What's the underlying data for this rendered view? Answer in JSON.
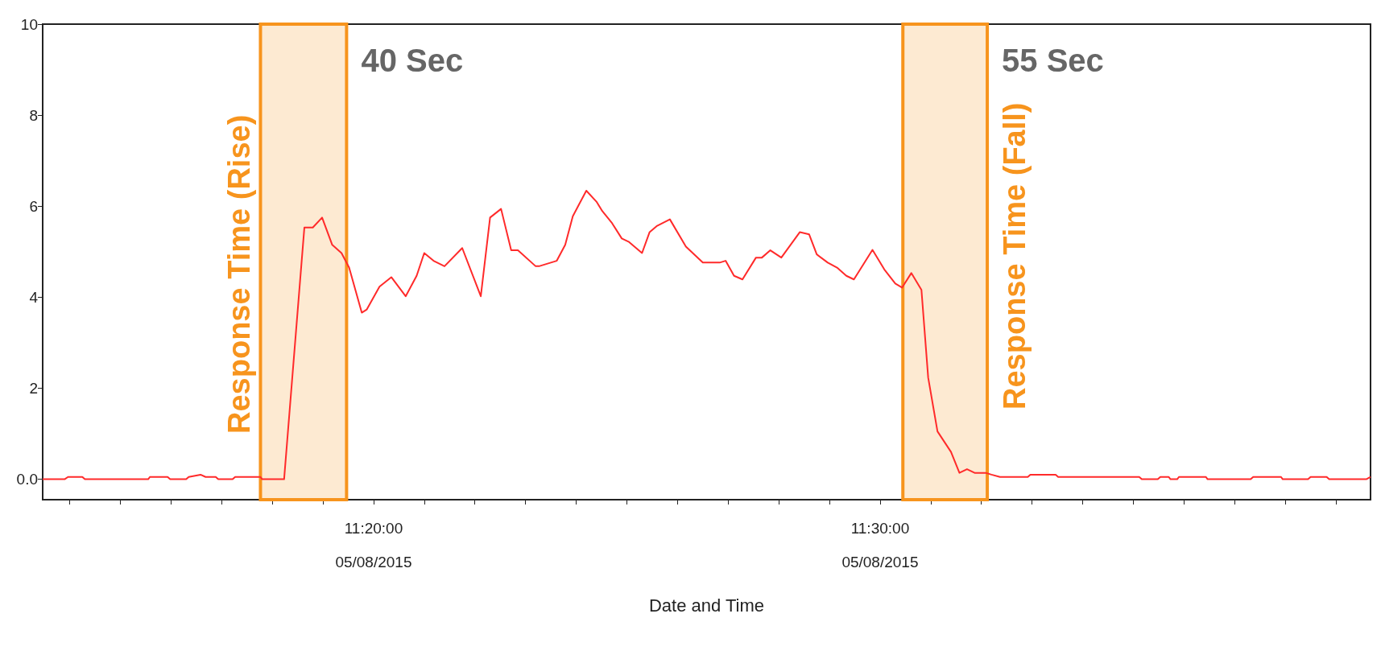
{
  "chart_data": {
    "type": "line",
    "xlabel": "Date and Time",
    "x": [
      "2015-05-08T11:13:28",
      "2015-05-08T11:13:54",
      "2015-05-08T11:13:58",
      "2015-05-08T11:14:15",
      "2015-05-08T11:14:18",
      "2015-05-08T11:15:33",
      "2015-05-08T11:15:35",
      "2015-05-08T11:15:56",
      "2015-05-08T11:15:59",
      "2015-05-08T11:16:18",
      "2015-05-08T11:16:21",
      "2015-05-08T11:16:35",
      "2015-05-08T11:16:41",
      "2015-05-08T11:16:53",
      "2015-05-08T11:16:56",
      "2015-05-08T11:17:13",
      "2015-05-08T11:17:16",
      "2015-05-08T11:17:46",
      "2015-05-08T11:17:48",
      "2015-05-08T11:18:14",
      "2015-05-08T11:18:38",
      "2015-05-08T11:18:48",
      "2015-05-08T11:18:59",
      "2015-05-08T11:19:11",
      "2015-05-08T11:19:22",
      "2015-05-08T11:19:31",
      "2015-05-08T11:19:46",
      "2015-05-08T11:19:52",
      "2015-05-08T11:20:07",
      "2015-05-08T11:20:21",
      "2015-05-08T11:20:38",
      "2015-05-08T11:20:51",
      "2015-05-08T11:21:00",
      "2015-05-08T11:21:11",
      "2015-05-08T11:21:24",
      "2015-05-08T11:21:45",
      "2015-05-08T11:22:07",
      "2015-05-08T11:22:18",
      "2015-05-08T11:22:31",
      "2015-05-08T11:22:43",
      "2015-05-08T11:22:51",
      "2015-05-08T11:23:12",
      "2015-05-08T11:23:16",
      "2015-05-08T11:23:37",
      "2015-05-08T11:23:47",
      "2015-05-08T11:23:56",
      "2015-05-08T11:24:12",
      "2015-05-08T11:24:24",
      "2015-05-08T11:24:31",
      "2015-05-08T11:24:42",
      "2015-05-08T11:24:54",
      "2015-05-08T11:25:02",
      "2015-05-08T11:25:18",
      "2015-05-08T11:25:27",
      "2015-05-08T11:25:36",
      "2015-05-08T11:25:51",
      "2015-05-08T11:26:10",
      "2015-05-08T11:26:30",
      "2015-05-08T11:26:50",
      "2015-05-08T11:26:57",
      "2015-05-08T11:27:07",
      "2015-05-08T11:27:17",
      "2015-05-08T11:27:33",
      "2015-05-08T11:27:40",
      "2015-05-08T11:27:50",
      "2015-05-08T11:28:03",
      "2015-05-08T11:28:25",
      "2015-05-08T11:28:36",
      "2015-05-08T11:28:45",
      "2015-05-08T11:28:58",
      "2015-05-08T11:29:09",
      "2015-05-08T11:29:20",
      "2015-05-08T11:29:29",
      "2015-05-08T11:29:51",
      "2015-05-08T11:30:05",
      "2015-05-08T11:30:18",
      "2015-05-08T11:30:26",
      "2015-05-08T11:30:37",
      "2015-05-08T11:30:49",
      "2015-05-08T11:30:57",
      "2015-05-08T11:31:08",
      "2015-05-08T11:31:24",
      "2015-05-08T11:31:34",
      "2015-05-08T11:31:43",
      "2015-05-08T11:31:52",
      "2015-05-08T11:32:05",
      "2015-05-08T11:32:12",
      "2015-05-08T11:32:22",
      "2015-05-08T11:32:55",
      "2015-05-08T11:32:58",
      "2015-05-08T11:33:28",
      "2015-05-08T11:33:31",
      "2015-05-08T11:35:07",
      "2015-05-08T11:35:10",
      "2015-05-08T11:35:29",
      "2015-05-08T11:35:32",
      "2015-05-08T11:35:42",
      "2015-05-08T11:35:44",
      "2015-05-08T11:35:52",
      "2015-05-08T11:35:54",
      "2015-05-08T11:36:26",
      "2015-05-08T11:36:28",
      "2015-05-08T11:37:19",
      "2015-05-08T11:37:22",
      "2015-05-08T11:37:55",
      "2015-05-08T11:37:57",
      "2015-05-08T11:38:27",
      "2015-05-08T11:38:30",
      "2015-05-08T11:38:49",
      "2015-05-08T11:38:52",
      "2015-05-08T11:39:36",
      "2015-05-08T11:39:41"
    ],
    "series": [
      {
        "color": "#ff2a2a",
        "values": [
          0,
          0,
          0.05,
          0.05,
          0,
          0,
          0.05,
          0.05,
          0,
          0,
          0.05,
          0.1,
          0.05,
          0.05,
          0,
          0,
          0.05,
          0.05,
          0,
          0,
          5.53,
          5.53,
          5.75,
          5.15,
          4.97,
          4.65,
          3.66,
          3.73,
          4.23,
          4.44,
          4.02,
          4.47,
          4.97,
          4.8,
          4.68,
          5.08,
          4.02,
          5.75,
          5.94,
          5.03,
          5.03,
          4.68,
          4.68,
          4.8,
          5.15,
          5.78,
          6.34,
          6.1,
          5.89,
          5.64,
          5.29,
          5.22,
          4.97,
          5.43,
          5.57,
          5.71,
          5.11,
          4.76,
          4.76,
          4.8,
          4.47,
          4.39,
          4.87,
          4.87,
          5.03,
          4.87,
          5.43,
          5.38,
          4.94,
          4.76,
          4.65,
          4.47,
          4.39,
          5.04,
          4.61,
          4.3,
          4.21,
          4.53,
          4.16,
          2.23,
          1.05,
          0.6,
          0.14,
          0.22,
          0.14,
          0.14,
          0.1,
          0.05,
          0.05,
          0.1,
          0.1,
          0.05,
          0.05,
          0,
          0,
          0.05,
          0.05,
          0,
          0,
          0.05,
          0.05,
          0,
          0,
          0.05,
          0.05,
          0,
          0,
          0.05,
          0.05,
          0,
          0,
          0.05
        ]
      }
    ],
    "xlim": [
      "2015-05-08T11:13:28",
      "2015-05-08T11:39:41"
    ],
    "xticks": [
      {
        "value": "2015-05-08T11:14",
        "label": null
      },
      {
        "value": "2015-05-08T11:15",
        "label": null
      },
      {
        "value": "2015-05-08T11:16",
        "label": null
      },
      {
        "value": "2015-05-08T11:17",
        "label": null
      },
      {
        "value": "2015-05-08T11:18",
        "label": null
      },
      {
        "value": "2015-05-08T11:19",
        "label": null
      },
      {
        "value": "2015-05-08T11:20",
        "label": "11:20:00\n05/08/2015"
      },
      {
        "value": "2015-05-08T11:21",
        "label": null
      },
      {
        "value": "2015-05-08T11:22",
        "label": null
      },
      {
        "value": "2015-05-08T11:23",
        "label": null
      },
      {
        "value": "2015-05-08T11:24",
        "label": null
      },
      {
        "value": "2015-05-08T11:25",
        "label": null
      },
      {
        "value": "2015-05-08T11:26",
        "label": null
      },
      {
        "value": "2015-05-08T11:27",
        "label": null
      },
      {
        "value": "2015-05-08T11:28",
        "label": null
      },
      {
        "value": "2015-05-08T11:29",
        "label": null
      },
      {
        "value": "2015-05-08T11:30",
        "label": "11:30:00\n05/08/2015"
      },
      {
        "value": "2015-05-08T11:31",
        "label": null
      },
      {
        "value": "2015-05-08T11:32",
        "label": null
      },
      {
        "value": "2015-05-08T11:33",
        "label": null
      },
      {
        "value": "2015-05-08T11:34",
        "label": null
      },
      {
        "value": "2015-05-08T11:35",
        "label": null
      },
      {
        "value": "2015-05-08T11:36",
        "label": null
      },
      {
        "value": "2015-05-08T11:37",
        "label": null
      },
      {
        "value": "2015-05-08T11:38",
        "label": null
      },
      {
        "value": "2015-05-08T11:39",
        "label": null
      }
    ],
    "ylim": [
      -0.45,
      10
    ],
    "yticks": [
      {
        "value": 0,
        "label": "0.0"
      },
      2,
      4,
      6,
      8,
      10
    ],
    "bands": [
      {
        "axis": "x",
        "from": "2015-05-08T11:17:46",
        "to": "2015-05-08T11:19:28",
        "label": "Response Time (Rise)",
        "color": "#f7941d"
      },
      {
        "axis": "x",
        "from": "2015-05-08T11:30:27",
        "to": "2015-05-08T11:32:07",
        "label": "Response Time (Fall)",
        "color": "#f7941d"
      }
    ],
    "annotations": [
      "40 Sec",
      "55 Sec"
    ],
    "grid": false
  }
}
